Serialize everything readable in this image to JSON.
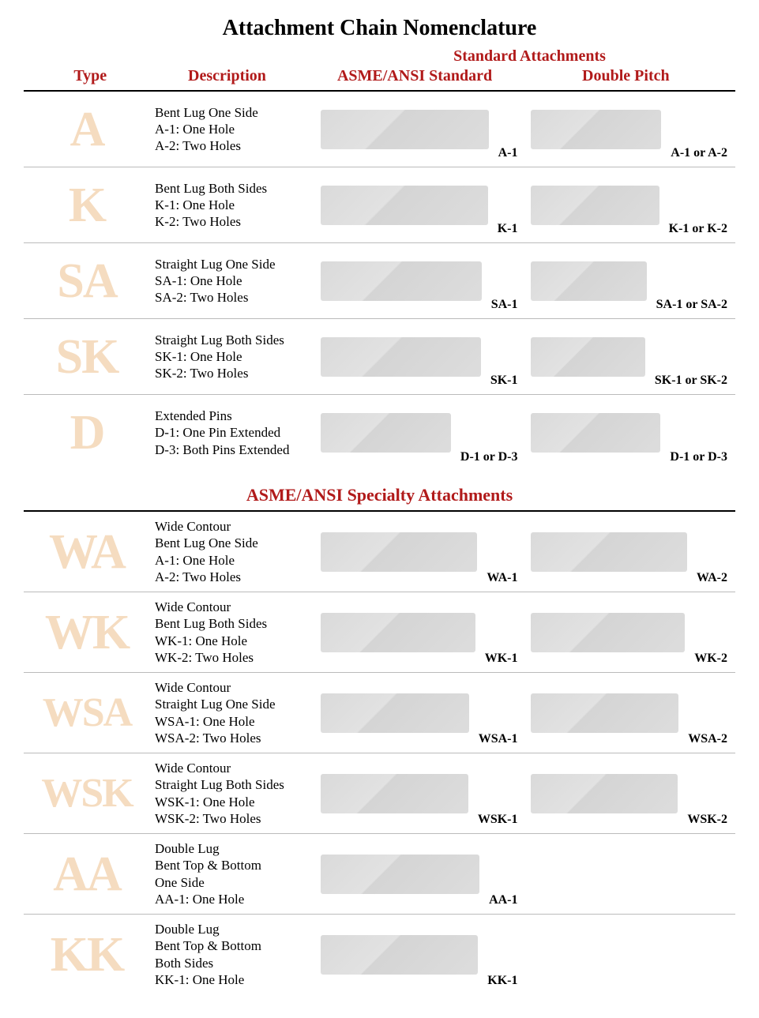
{
  "title": "Attachment Chain Nomenclature",
  "headers": {
    "super": "Standard Attachments",
    "type": "Type",
    "description": "Description",
    "std": "ASME/ANSI Standard",
    "dbl": "Double Pitch"
  },
  "section2_title": "ASME/ANSI Specialty Attachments",
  "colors": {
    "header_red": "#b11a1a",
    "type_letter": "#f5dcc0",
    "rule": "#000000",
    "row_border": "#bbbbbb"
  },
  "section1_rows": [
    {
      "type": "A",
      "desc": [
        "Bent Lug One Side",
        "A-1: One Hole",
        "A-2: Two Holes"
      ],
      "std_caption": "A-1",
      "dbl_caption": "A-1 or A-2"
    },
    {
      "type": "K",
      "desc": [
        "Bent Lug Both Sides",
        "K-1: One Hole",
        "K-2: Two Holes"
      ],
      "std_caption": "K-1",
      "dbl_caption": "K-1 or K-2"
    },
    {
      "type": "SA",
      "desc": [
        "Straight Lug One Side",
        "SA-1: One Hole",
        "SA-2: Two Holes"
      ],
      "std_caption": "SA-1",
      "dbl_caption": "SA-1 or SA-2"
    },
    {
      "type": "SK",
      "desc": [
        "Straight Lug Both Sides",
        "SK-1: One Hole",
        "SK-2: Two Holes"
      ],
      "std_caption": "SK-1",
      "dbl_caption": "SK-1 or SK-2"
    },
    {
      "type": "D",
      "desc": [
        "Extended Pins",
        "D-1: One Pin Extended",
        "D-3: Both Pins Extended"
      ],
      "std_caption": "D-1 or D-3",
      "dbl_caption": "D-1 or D-3"
    }
  ],
  "section2_rows": [
    {
      "type": "WA",
      "desc": [
        "Wide Contour",
        "Bent Lug One Side",
        "A-1: One Hole",
        "A-2: Two Holes"
      ],
      "std_caption": "WA-1",
      "dbl_caption": "WA-2"
    },
    {
      "type": "WK",
      "desc": [
        "Wide Contour",
        "Bent Lug Both Sides",
        "WK-1: One Hole",
        "WK-2: Two Holes"
      ],
      "std_caption": "WK-1",
      "dbl_caption": "WK-2"
    },
    {
      "type": "WSA",
      "desc": [
        "Wide Contour",
        "Straight Lug One Side",
        "WSA-1: One Hole",
        "WSA-2: Two Holes"
      ],
      "std_caption": "WSA-1",
      "dbl_caption": "WSA-2"
    },
    {
      "type": "WSK",
      "desc": [
        "Wide Contour",
        "Straight Lug Both Sides",
        "WSK-1: One Hole",
        "WSK-2: Two Holes"
      ],
      "std_caption": "WSK-1",
      "dbl_caption": "WSK-2"
    },
    {
      "type": "AA",
      "desc": [
        "Double Lug",
        "Bent Top & Bottom",
        "One Side",
        "AA-1: One Hole"
      ],
      "std_caption": "AA-1",
      "dbl_caption": ""
    },
    {
      "type": "KK",
      "desc": [
        "Double Lug",
        "Bent Top & Bottom",
        "Both Sides",
        "KK-1: One Hole"
      ],
      "std_caption": "KK-1",
      "dbl_caption": ""
    }
  ]
}
